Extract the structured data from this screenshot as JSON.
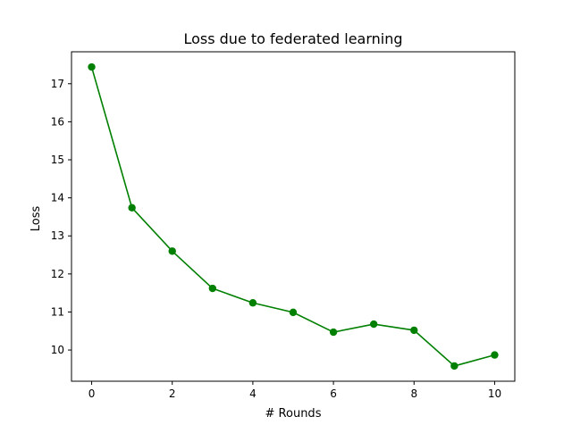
{
  "chart_data": {
    "type": "line",
    "title": "Loss due to federated learning",
    "xlabel": "# Rounds",
    "ylabel": "Loss",
    "x": [
      0,
      1,
      2,
      3,
      4,
      5,
      6,
      7,
      8,
      9,
      10
    ],
    "series": [
      {
        "values": [
          17.44,
          13.74,
          12.6,
          11.62,
          11.24,
          10.99,
          10.47,
          10.68,
          10.52,
          9.58,
          9.87
        ],
        "color": "#008000",
        "marker": "circle"
      }
    ],
    "xlim": [
      -0.5,
      10.5
    ],
    "ylim": [
      9.18,
      17.84
    ],
    "xticks": [
      "0",
      "2",
      "4",
      "6",
      "8",
      "10"
    ],
    "yticks": [
      "10",
      "11",
      "12",
      "13",
      "14",
      "15",
      "16",
      "17"
    ],
    "grid": false,
    "legend": "none"
  }
}
